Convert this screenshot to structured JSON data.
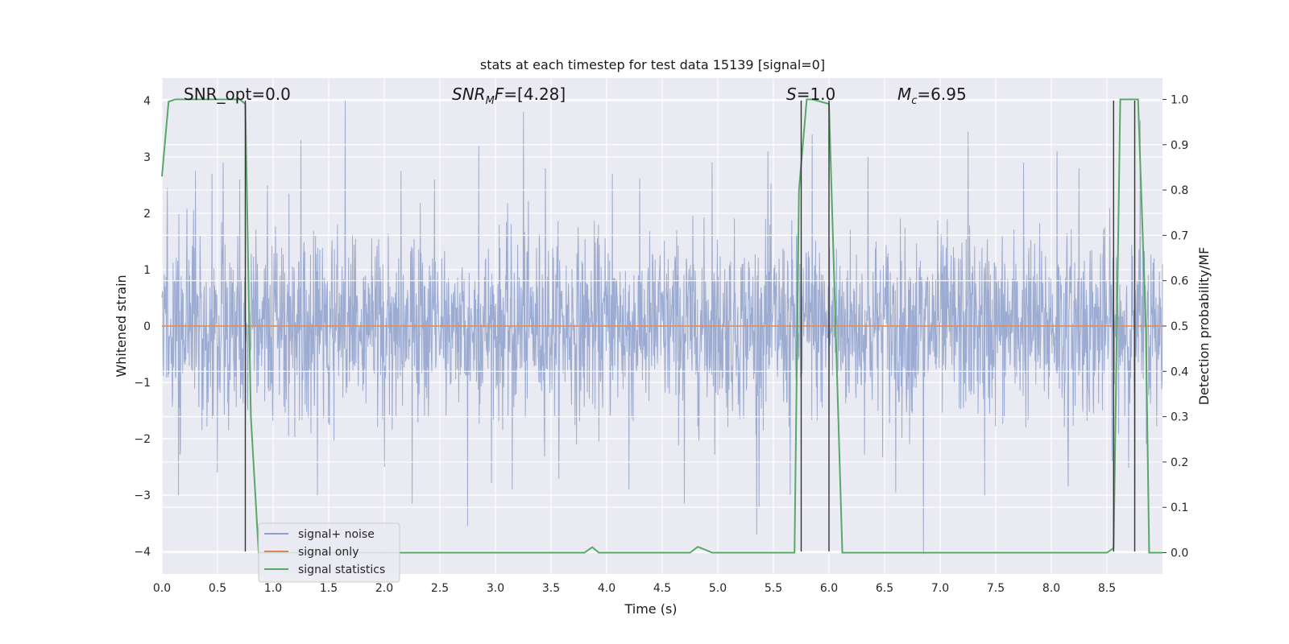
{
  "chart_data": {
    "type": "line",
    "title": "stats at each timestep for test data 15139 [signal=0]",
    "xlabel": "Time (s)",
    "ylabel": "Whitened strain",
    "y2label": "Detection probability/MF",
    "xlim": [
      0.0,
      9.0
    ],
    "ylim": [
      -4.4,
      4.4
    ],
    "y2lim": [
      -0.047,
      1.047
    ],
    "x_ticks": [
      "0.0",
      "0.5",
      "1.0",
      "1.5",
      "2.0",
      "2.5",
      "3.0",
      "3.5",
      "4.0",
      "4.5",
      "5.0",
      "5.5",
      "6.0",
      "6.5",
      "7.0",
      "7.5",
      "8.0",
      "8.5"
    ],
    "y_ticks": [
      "4",
      "3",
      "2",
      "1",
      "0",
      "−1",
      "−2",
      "−3",
      "−4"
    ],
    "y2_ticks": [
      "1.0",
      "0.9",
      "0.8",
      "0.7",
      "0.6",
      "0.5",
      "0.4",
      "0.3",
      "0.2",
      "0.1",
      "0.0"
    ],
    "grid": true,
    "legend_position": "lower-left",
    "annotations": {
      "snr_opt": "SNR_opt=0.0",
      "snr_mf": "=[4.28]",
      "s_val": "=1.0",
      "mc_val": "=6.95"
    },
    "colors": {
      "noise": "#8da0cb",
      "signal": "#dd8452",
      "stats": "#55a868",
      "vlines": "#333333",
      "plot_bg": "#eaeaf2"
    },
    "series": [
      {
        "name": "signal+ noise",
        "kind": "whitened-noise",
        "std": 0.8,
        "peaks": [
          [
            0.05,
            2.45
          ],
          [
            0.15,
            2.55
          ],
          [
            0.3,
            2.75
          ],
          [
            0.45,
            2.7
          ],
          [
            0.55,
            2.9
          ],
          [
            0.7,
            2.6
          ],
          [
            0.95,
            2.5
          ],
          [
            1.25,
            3.3
          ],
          [
            1.65,
            4.0
          ],
          [
            2.15,
            2.75
          ],
          [
            2.45,
            2.6
          ],
          [
            2.85,
            3.2
          ],
          [
            3.25,
            3.8
          ],
          [
            3.45,
            2.8
          ],
          [
            4.05,
            2.7
          ],
          [
            4.95,
            2.9
          ],
          [
            5.45,
            3.1
          ],
          [
            5.85,
            3.4
          ],
          [
            6.35,
            3.0
          ],
          [
            6.85,
            3.3
          ],
          [
            7.25,
            3.45
          ],
          [
            7.75,
            2.9
          ],
          [
            8.05,
            3.1
          ],
          [
            8.25,
            2.8
          ],
          [
            8.8,
            3.65
          ]
        ],
        "troughs": [
          [
            0.15,
            -3.0
          ],
          [
            0.5,
            -2.6
          ],
          [
            1.4,
            -3.0
          ],
          [
            2.0,
            -2.5
          ],
          [
            2.25,
            -3.15
          ],
          [
            2.75,
            -3.55
          ],
          [
            3.15,
            -2.9
          ],
          [
            4.2,
            -2.9
          ],
          [
            4.7,
            -3.15
          ],
          [
            5.35,
            -3.7
          ],
          [
            5.65,
            -3.0
          ],
          [
            6.6,
            -2.95
          ],
          [
            6.85,
            -4.05
          ],
          [
            7.4,
            -3.0
          ],
          [
            8.15,
            -2.85
          ],
          [
            8.75,
            -3.4
          ]
        ]
      },
      {
        "name": "signal only",
        "x": [
          0.0,
          9.0
        ],
        "y": [
          0.0,
          0.0
        ]
      },
      {
        "name": "signal statistics",
        "axis": "right",
        "x": [
          0.0,
          0.06,
          0.12,
          0.7,
          0.75,
          0.8,
          0.87,
          3.8,
          3.87,
          3.93,
          4.75,
          4.82,
          4.95,
          5.69,
          5.73,
          5.8,
          5.85,
          6.0,
          6.12,
          8.5,
          8.56,
          8.62,
          8.78,
          8.85,
          8.88,
          9.0
        ],
        "y": [
          0.83,
          0.995,
          1.0,
          1.0,
          0.99,
          0.3,
          0.0,
          0.0,
          0.012,
          0.0,
          0.0,
          0.013,
          0.0,
          0.0,
          0.8,
          1.0,
          1.0,
          0.99,
          0.0,
          0.0,
          0.01,
          1.0,
          1.0,
          0.5,
          0.0,
          0.0
        ]
      }
    ],
    "vertical_lines": [
      0.75,
      5.75,
      6.0,
      8.56,
      8.75
    ]
  }
}
